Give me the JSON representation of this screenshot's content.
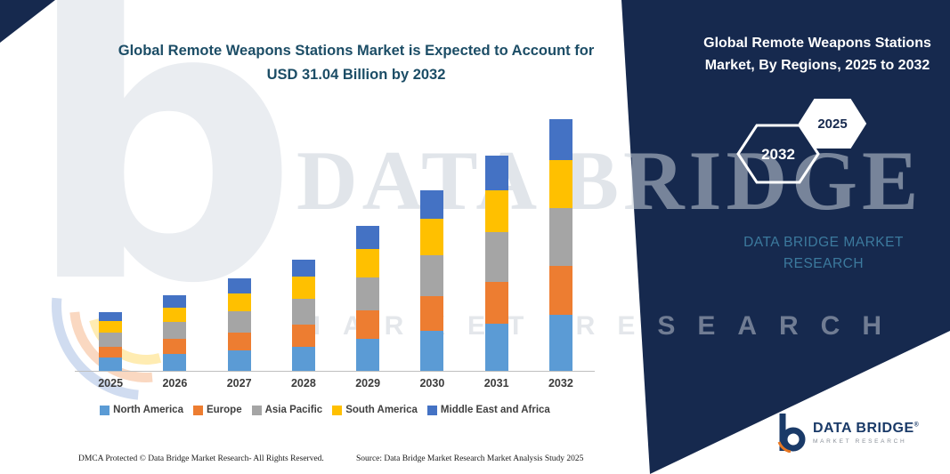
{
  "page": {
    "title_line1": "Global Remote Weapons Stations Market is Expected to Account for",
    "title_line2": "USD 31.04 Billion by 2032"
  },
  "right_panel": {
    "title": "Global Remote Weapons Stations Market, By Regions, 2025 to 2032",
    "hexagon_back_label": "2032",
    "hexagon_front_label": "2025",
    "brand_line1": "DATA BRIDGE MARKET",
    "brand_line2": "RESEARCH",
    "bg_color": "#16294E",
    "brand_text_color": "#3C7A9E"
  },
  "watermark": {
    "letter": "b",
    "line1": "DATA BRIDGE",
    "line2": "MARKET RESEARCH"
  },
  "logo": {
    "name": "DATA BRIDGE",
    "registered": "®",
    "subtitle": "MARKET RESEARCH"
  },
  "footer": {
    "left": "DMCA Protected © Data Bridge Market Research-  All Rights Reserved.",
    "source": "Source: Data Bridge Market Research  Market Analysis Study 2025"
  },
  "chart_data": {
    "type": "bar",
    "stacked": true,
    "title": "Global Remote Weapons Stations Market is Expected to Account for USD 31.04 Billion by 2032",
    "unit": "USD Billion",
    "categories": [
      "2025",
      "2026",
      "2027",
      "2028",
      "2029",
      "2030",
      "2031",
      "2032"
    ],
    "series": [
      {
        "name": "North America",
        "color": "#5B9BD5",
        "values": [
          1.6,
          2.1,
          2.5,
          3.0,
          3.9,
          4.9,
          5.8,
          6.9
        ]
      },
      {
        "name": "Europe",
        "color": "#ED7D31",
        "values": [
          1.4,
          1.8,
          2.2,
          2.7,
          3.5,
          4.3,
          5.2,
          6.0
        ]
      },
      {
        "name": "Asia Pacific",
        "color": "#A5A5A5",
        "values": [
          1.7,
          2.1,
          2.6,
          3.2,
          4.1,
          5.1,
          6.1,
          7.2
        ]
      },
      {
        "name": "South America",
        "color": "#FFC000",
        "values": [
          1.4,
          1.8,
          2.2,
          2.7,
          3.5,
          4.4,
          5.2,
          5.9
        ]
      },
      {
        "name": "Middle East and Africa",
        "color": "#4472C4",
        "values": [
          1.1,
          1.5,
          1.9,
          2.1,
          2.9,
          3.6,
          4.2,
          5.0
        ]
      }
    ],
    "totals": [
      7.2,
      9.3,
      11.4,
      13.7,
      17.9,
      22.3,
      26.5,
      31.04
    ],
    "ylim": [
      0,
      32
    ],
    "grid": false,
    "legend_position": "bottom"
  }
}
